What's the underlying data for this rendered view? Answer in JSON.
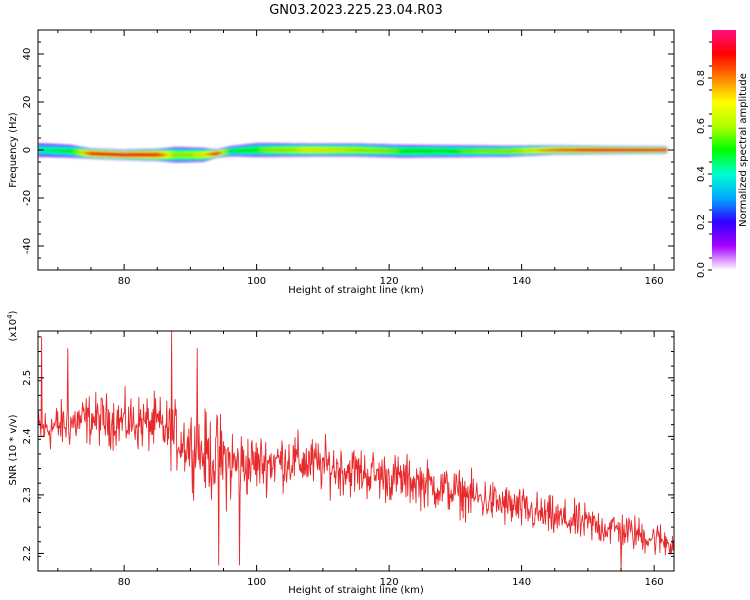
{
  "title": "GN03.2023.225.23.04.R03",
  "chart_data": [
    {
      "type": "heatmap",
      "xlabel": "Height of straight line (km)",
      "ylabel": "Frequency (Hz)",
      "xlim": [
        67,
        163
      ],
      "ylim": [
        -50,
        50
      ],
      "xticks": [
        80,
        100,
        120,
        140,
        160
      ],
      "yticks": [
        -40,
        -20,
        0,
        20,
        40
      ],
      "colorbar": {
        "label": "Normalized spectral amplitude",
        "range": [
          0.0,
          1.0
        ],
        "ticks": [
          0.0,
          0.2,
          0.4,
          0.6,
          0.8
        ],
        "tick_labels": [
          "0.0",
          "0.2",
          "0.4",
          "0.6",
          "0.8"
        ],
        "colors": [
          "#ffffff",
          "#a600ff",
          "#2d00ff",
          "#00aaff",
          "#00ffd0",
          "#00ff00",
          "#b3ff00",
          "#ffff00",
          "#ff8000",
          "#ff0000",
          "#ff1080"
        ]
      },
      "band": [
        {
          "x": 67,
          "center": 0.0,
          "halfwidth": 3.0,
          "peak": 0.45
        },
        {
          "x": 72,
          "center": -0.5,
          "halfwidth": 2.8,
          "peak": 0.5
        },
        {
          "x": 75,
          "center": -1.5,
          "halfwidth": 2.2,
          "peak": 0.92
        },
        {
          "x": 80,
          "center": -2.0,
          "halfwidth": 2.2,
          "peak": 0.95
        },
        {
          "x": 85,
          "center": -2.0,
          "halfwidth": 2.6,
          "peak": 0.9
        },
        {
          "x": 88,
          "center": -2.0,
          "halfwidth": 3.4,
          "peak": 0.6
        },
        {
          "x": 92,
          "center": -2.0,
          "halfwidth": 3.0,
          "peak": 0.7
        },
        {
          "x": 94,
          "center": -1.5,
          "halfwidth": 1.8,
          "peak": 0.95
        },
        {
          "x": 96,
          "center": -0.5,
          "halfwidth": 2.2,
          "peak": 0.5
        },
        {
          "x": 100,
          "center": 0.0,
          "halfwidth": 3.0,
          "peak": 0.55
        },
        {
          "x": 108,
          "center": 0.0,
          "halfwidth": 2.8,
          "peak": 0.7
        },
        {
          "x": 115,
          "center": 0.0,
          "halfwidth": 2.8,
          "peak": 0.65
        },
        {
          "x": 122,
          "center": -0.5,
          "halfwidth": 2.8,
          "peak": 0.55
        },
        {
          "x": 130,
          "center": -0.5,
          "halfwidth": 2.6,
          "peak": 0.55
        },
        {
          "x": 138,
          "center": -0.5,
          "halfwidth": 2.4,
          "peak": 0.6
        },
        {
          "x": 145,
          "center": 0.0,
          "halfwidth": 2.0,
          "peak": 0.85
        },
        {
          "x": 152,
          "center": 0.0,
          "halfwidth": 1.8,
          "peak": 0.95
        },
        {
          "x": 162,
          "center": 0.0,
          "halfwidth": 1.6,
          "peak": 0.95
        }
      ]
    },
    {
      "type": "line",
      "xlabel": "Height of straight line (km)",
      "ylabel": "SNR (10 * v/v)",
      "yunit": "(x10^4)",
      "yunit_base": "(x10",
      "yunit_exp": "4",
      "yunit_close": ")",
      "xlim": [
        67,
        163
      ],
      "ylim": [
        2.17,
        2.58
      ],
      "xticks": [
        80,
        100,
        120,
        140,
        160
      ],
      "yticks": [
        2.2,
        2.3,
        2.4,
        2.5
      ],
      "ytick_labels": [
        "2.2",
        "2.3",
        "2.4",
        "2.5"
      ],
      "color": "#e8292b",
      "trend": [
        {
          "x": 67,
          "y": 2.41
        },
        {
          "x": 75,
          "y": 2.43
        },
        {
          "x": 85,
          "y": 2.42
        },
        {
          "x": 92,
          "y": 2.37
        },
        {
          "x": 97,
          "y": 2.35
        },
        {
          "x": 105,
          "y": 2.36
        },
        {
          "x": 115,
          "y": 2.34
        },
        {
          "x": 125,
          "y": 2.32
        },
        {
          "x": 135,
          "y": 2.29
        },
        {
          "x": 145,
          "y": 2.26
        },
        {
          "x": 155,
          "y": 2.24
        },
        {
          "x": 162,
          "y": 2.22
        }
      ],
      "noise_amplitude": [
        {
          "x": 67,
          "a": 0.04
        },
        {
          "x": 85,
          "a": 0.05
        },
        {
          "x": 95,
          "a": 0.08
        },
        {
          "x": 100,
          "a": 0.05
        },
        {
          "x": 130,
          "a": 0.04
        },
        {
          "x": 162,
          "a": 0.03
        }
      ],
      "peaks": [
        {
          "x": 67.5,
          "y": 2.57
        },
        {
          "x": 71.5,
          "y": 2.55
        },
        {
          "x": 87.2,
          "y": 2.58
        },
        {
          "x": 91.0,
          "y": 2.55
        },
        {
          "x": 94.3,
          "y": 2.18
        },
        {
          "x": 97.4,
          "y": 2.18
        },
        {
          "x": 155.0,
          "y": 2.17
        }
      ]
    }
  ]
}
